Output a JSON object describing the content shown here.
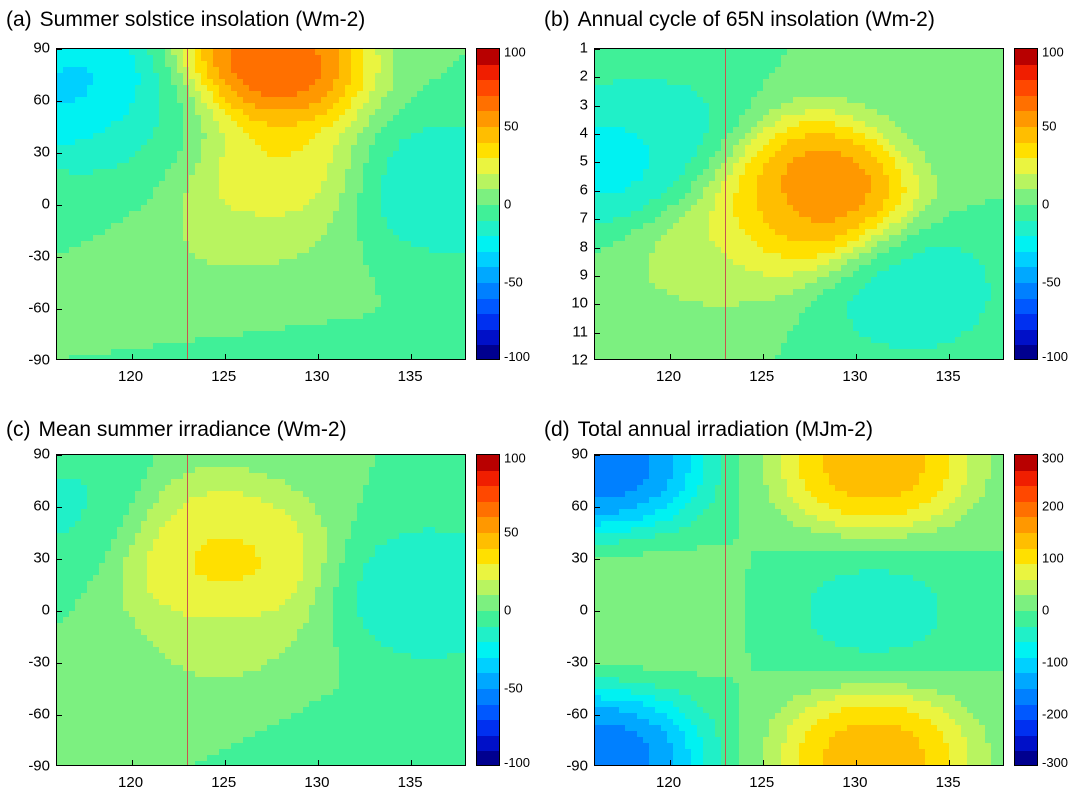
{
  "chart_data": [
    {
      "panel_letter": "(a)",
      "title": "Summer solstice insolation (Wm-2)",
      "type": "heatmap",
      "x_ticks": [
        "120",
        "125",
        "130",
        "135"
      ],
      "x_tick_values": [
        120,
        125,
        130,
        135
      ],
      "xlim": [
        116,
        138
      ],
      "y_ticks": [
        "90",
        "60",
        "30",
        "0",
        "-30",
        "-60",
        "-90"
      ],
      "y_tick_values": [
        90,
        60,
        30,
        0,
        -30,
        -60,
        -90
      ],
      "ylim": [
        -90,
        90
      ],
      "colorbar_ticks": [
        "100",
        "50",
        "0",
        "-50",
        "-100"
      ],
      "colorbar_range": [
        -100,
        100
      ],
      "marker_x": 123,
      "field": [
        {
          "x": 117.5,
          "y": 65,
          "v": -45
        },
        {
          "x": 121,
          "y": 40,
          "v": -10
        },
        {
          "x": 127.5,
          "y": 80,
          "v": 95
        },
        {
          "x": 127,
          "y": 20,
          "v": 40
        },
        {
          "x": 126,
          "y": -30,
          "v": 15
        },
        {
          "x": 137,
          "y": 10,
          "v": -25
        },
        {
          "x": 127,
          "y": -75,
          "v": -2
        }
      ]
    },
    {
      "panel_letter": "(b)",
      "title": "Annual cycle of 65N insolation (Wm-2)",
      "type": "heatmap",
      "x_ticks": [
        "120",
        "125",
        "130",
        "135"
      ],
      "x_tick_values": [
        120,
        125,
        130,
        135
      ],
      "xlim": [
        116,
        138
      ],
      "y_ticks": [
        "1",
        "2",
        "3",
        "4",
        "5",
        "6",
        "7",
        "8",
        "9",
        "10",
        "11",
        "12"
      ],
      "y_tick_values": [
        1,
        2,
        3,
        4,
        5,
        6,
        7,
        8,
        9,
        10,
        11,
        12
      ],
      "ylim": [
        1,
        12
      ],
      "colorbar_ticks": [
        "100",
        "50",
        "0",
        "-50",
        "-100"
      ],
      "colorbar_range": [
        -100,
        100
      ],
      "marker_x": 123,
      "field": [
        {
          "x": 128,
          "y": 6,
          "v": 85
        },
        {
          "x": 126,
          "y": 6.5,
          "v": 45
        },
        {
          "x": 122,
          "y": 8,
          "v": 20
        },
        {
          "x": 117.5,
          "y": 5,
          "v": -35
        },
        {
          "x": 120,
          "y": 4,
          "v": -15
        },
        {
          "x": 133,
          "y": 9.5,
          "v": -22
        },
        {
          "x": 136,
          "y": 3,
          "v": 5
        }
      ]
    },
    {
      "panel_letter": "(c)",
      "title": "Mean summer irradiance (Wm-2)",
      "type": "heatmap",
      "x_ticks": [
        "120",
        "125",
        "130",
        "135"
      ],
      "x_tick_values": [
        120,
        125,
        130,
        135
      ],
      "xlim": [
        116,
        138
      ],
      "y_ticks": [
        "90",
        "60",
        "30",
        "0",
        "-30",
        "-60",
        "-90"
      ],
      "y_tick_values": [
        90,
        60,
        30,
        0,
        -30,
        -60,
        -90
      ],
      "ylim": [
        -90,
        90
      ],
      "colorbar_ticks": [
        "100",
        "50",
        "0",
        "-50",
        "-100"
      ],
      "colorbar_range": [
        -100,
        100
      ],
      "marker_x": 123,
      "field": [
        {
          "x": 125,
          "y": 25,
          "v": 45
        },
        {
          "x": 124.5,
          "y": 40,
          "v": 30
        },
        {
          "x": 125,
          "y": -20,
          "v": 15
        },
        {
          "x": 136,
          "y": 10,
          "v": -25
        },
        {
          "x": 116.5,
          "y": 60,
          "v": -15
        },
        {
          "x": 130,
          "y": -80,
          "v": -2
        }
      ]
    },
    {
      "panel_letter": "(d)",
      "title": "Total annual irradiation (MJm-2)",
      "type": "heatmap",
      "x_ticks": [
        "120",
        "125",
        "130",
        "135"
      ],
      "x_tick_values": [
        120,
        125,
        130,
        135
      ],
      "xlim": [
        116,
        138
      ],
      "y_ticks": [
        "90",
        "60",
        "30",
        "0",
        "-30",
        "-60",
        "-90"
      ],
      "y_tick_values": [
        90,
        60,
        30,
        0,
        -30,
        -60,
        -90
      ],
      "ylim": [
        -90,
        90
      ],
      "colorbar_ticks": [
        "300",
        "200",
        "100",
        "0",
        "-100",
        "-200",
        "-300"
      ],
      "colorbar_range": [
        -300,
        300
      ],
      "marker_x": 123,
      "field": [
        {
          "x": 116.5,
          "y": 85,
          "v": -230
        },
        {
          "x": 116.5,
          "y": -85,
          "v": -230
        },
        {
          "x": 131,
          "y": 85,
          "v": 190
        },
        {
          "x": 131,
          "y": -85,
          "v": 190
        },
        {
          "x": 131,
          "y": 0,
          "v": -55
        },
        {
          "x": 118,
          "y": 0,
          "v": 30
        }
      ]
    }
  ]
}
